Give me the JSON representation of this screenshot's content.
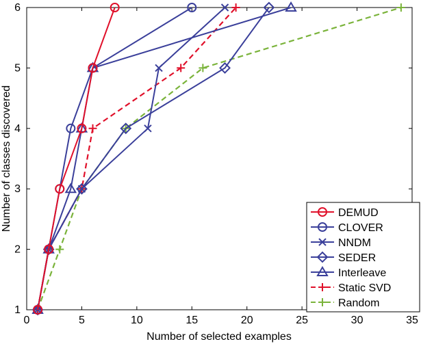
{
  "chart_data": {
    "type": "line",
    "title": "",
    "xlabel": "Number of selected examples",
    "ylabel": "Number of classes discovered",
    "xlim": [
      0,
      35
    ],
    "ylim": [
      1,
      6
    ],
    "xticks": [
      0,
      5,
      10,
      15,
      20,
      25,
      30,
      35
    ],
    "yticks": [
      1,
      2,
      3,
      4,
      5,
      6
    ],
    "grid": false,
    "legend_position": "bottom-right",
    "series": [
      {
        "name": "DEMUD",
        "color": "#e0102a",
        "marker": "circle",
        "dash": false,
        "x": [
          1,
          2,
          3,
          5,
          6,
          8
        ],
        "y": [
          1,
          2,
          3,
          4,
          5,
          6
        ]
      },
      {
        "name": "CLOVER",
        "color": "#3a3f9a",
        "marker": "circle",
        "dash": false,
        "x": [
          1,
          2,
          3,
          4,
          6,
          15
        ],
        "y": [
          1,
          2,
          3,
          4,
          5,
          6
        ]
      },
      {
        "name": "NNDM",
        "color": "#3a3f9a",
        "marker": "x",
        "dash": false,
        "x": [
          1,
          2,
          5,
          11,
          12,
          18
        ],
        "y": [
          1,
          2,
          3,
          4,
          5,
          6
        ]
      },
      {
        "name": "SEDER",
        "color": "#3a3f9a",
        "marker": "diamond",
        "dash": false,
        "x": [
          1,
          2,
          5,
          9,
          18,
          22
        ],
        "y": [
          1,
          2,
          3,
          4,
          5,
          6
        ]
      },
      {
        "name": "Interleave",
        "color": "#3a3f9a",
        "marker": "triangle",
        "dash": false,
        "x": [
          1,
          2,
          4,
          5,
          6,
          24
        ],
        "y": [
          1,
          2,
          3,
          4,
          5,
          6
        ]
      },
      {
        "name": "Static SVD",
        "color": "#e0102a",
        "marker": "plus",
        "dash": true,
        "x": [
          1,
          2,
          5,
          6,
          14,
          19
        ],
        "y": [
          1,
          2,
          3,
          4,
          5,
          6
        ]
      },
      {
        "name": "Random",
        "color": "#7ab33a",
        "marker": "plus",
        "dash": true,
        "x": [
          1,
          3,
          5,
          9,
          16,
          34
        ],
        "y": [
          1,
          2,
          3,
          4,
          5,
          6
        ]
      }
    ]
  }
}
